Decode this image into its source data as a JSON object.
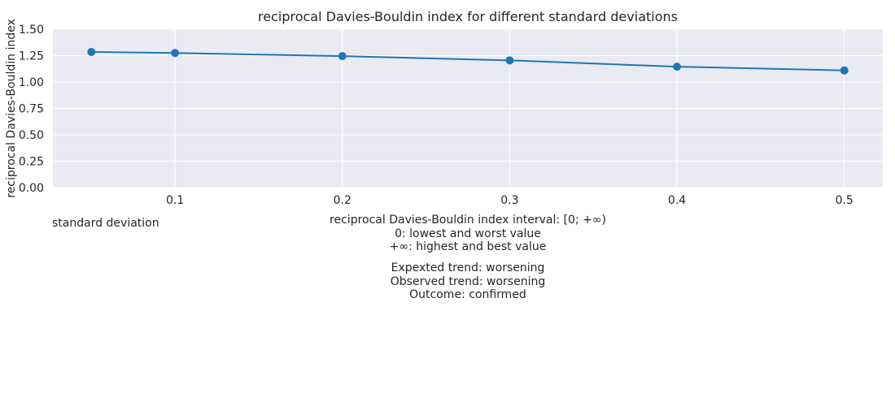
{
  "chart_data": {
    "type": "line",
    "title": "reciprocal Davies-Bouldin index for different standard deviations",
    "xlabel": "standard deviation",
    "ylabel": "reciprocal Davies-Bouldin index",
    "x": [
      0.05,
      0.1,
      0.2,
      0.3,
      0.4,
      0.5
    ],
    "series": [
      {
        "values": [
          1.285,
          1.275,
          1.245,
          1.205,
          1.145,
          1.11
        ]
      }
    ],
    "xlim": [
      0.027,
      0.523
    ],
    "ylim": [
      0,
      1.5
    ],
    "xticks": [
      0.1,
      0.2,
      0.3,
      0.4,
      0.5
    ],
    "xtick_labels": [
      "0.1",
      "0.2",
      "0.3",
      "0.4",
      "0.5"
    ],
    "yticks": [
      0,
      0.25,
      0.5,
      0.75,
      1.0,
      1.25,
      1.5
    ],
    "ytick_labels": [
      "0.00",
      "0.25",
      "0.50",
      "0.75",
      "1.00",
      "1.25",
      "1.50"
    ],
    "grid": true,
    "colors": {
      "line": "#1f77b4",
      "plot_background": "#eaeaf2",
      "grid": "#ffffff"
    }
  },
  "notes": {
    "interval_lines": [
      "reciprocal Davies-Bouldin index interval: [0; +∞)",
      "0: lowest and worst value",
      "+∞: highest and best value"
    ],
    "trend_lines": [
      "Expexted trend: worsening",
      "Observed trend: worsening",
      "Outcome: confirmed"
    ]
  }
}
